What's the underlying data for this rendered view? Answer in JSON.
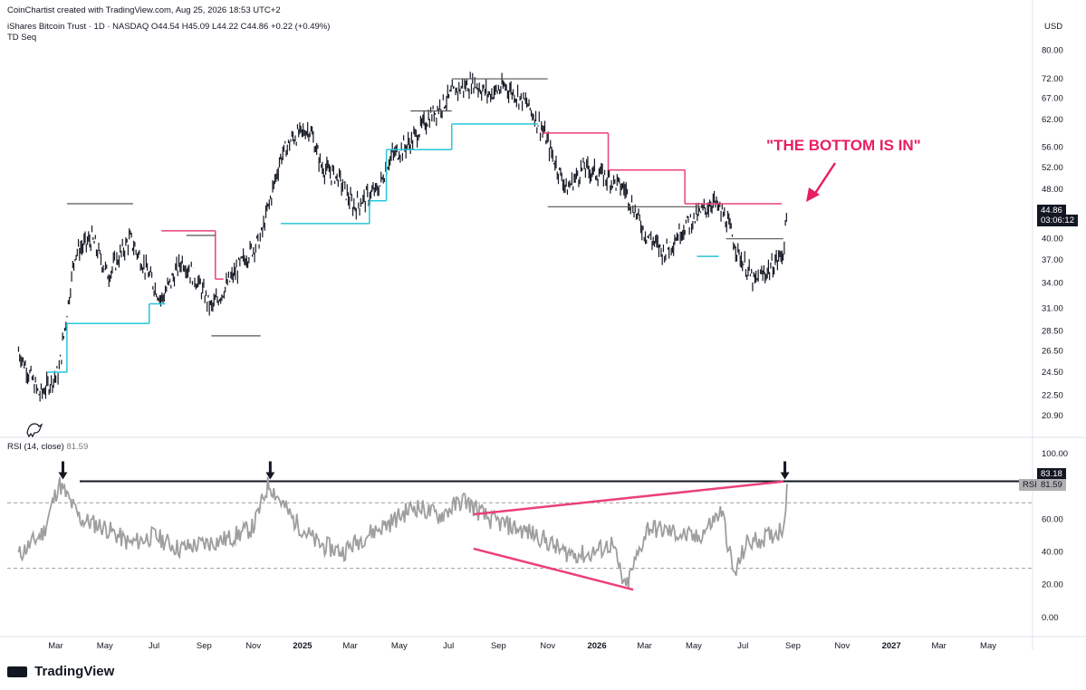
{
  "header": {
    "credit": "CoinChartist created with TradingView.com, Aug 25, 2026 18:53 UTC+2",
    "symbol_line": "iShares Bitcoin Trust · 1D · NASDAQ  O44.54  H45.09  L44.22  C44.86  +0.22 (+0.49%)",
    "indicator": "TD Seq",
    "currency": "USD"
  },
  "rsi_header": {
    "name": "RSI (14, close)",
    "value": "81.59"
  },
  "price_badges": {
    "last": "44.86",
    "countdown": "03:06:12"
  },
  "rsi_badges": {
    "level": "83.18",
    "tag": "RSI",
    "value": "81.59"
  },
  "annotation": {
    "text": "\"THE BOTTOM IS IN\""
  },
  "footer": {
    "brand": "TradingView"
  },
  "colors": {
    "annotation": "#e91e63",
    "support": "#26c6da",
    "resistance": "#ec407a",
    "rsi_line": "#9e9e9e",
    "candle": "#131722"
  },
  "chart_data": [
    {
      "type": "line",
      "title": "iShares Bitcoin Trust · 1D · NASDAQ",
      "x_ticks": [
        "Mar",
        "May",
        "Jul",
        "Sep",
        "Nov",
        "2025",
        "Mar",
        "May",
        "Jul",
        "Sep",
        "Nov",
        "2026",
        "Mar",
        "May",
        "Jul",
        "Sep",
        "Nov",
        "2027",
        "Mar",
        "May"
      ],
      "y_ticks": [
        "80.00",
        "72.00",
        "67.00",
        "62.00",
        "56.00",
        "52.00",
        "48.00",
        "44.86",
        "40.00",
        "37.00",
        "34.00",
        "31.00",
        "28.50",
        "26.50",
        "24.50",
        "22.50",
        "20.90"
      ],
      "scale": "log",
      "x": [
        "2024-01-15",
        "2024-02-10",
        "2024-03-05",
        "2024-03-25",
        "2024-04-15",
        "2024-05-05",
        "2024-06-01",
        "2024-06-20",
        "2024-07-10",
        "2024-08-05",
        "2024-08-25",
        "2024-09-10",
        "2024-10-01",
        "2024-10-20",
        "2024-11-10",
        "2024-12-05",
        "2024-12-20",
        "2025-01-10",
        "2025-01-25",
        "2025-02-15",
        "2025-03-05",
        "2025-04-05",
        "2025-04-20",
        "2025-05-15",
        "2025-06-05",
        "2025-06-20",
        "2025-07-10",
        "2025-08-01",
        "2025-08-20",
        "2025-09-10",
        "2025-10-05",
        "2025-10-25",
        "2025-11-10",
        "2025-11-25",
        "2025-12-15",
        "2026-01-15",
        "2026-02-05",
        "2026-03-01",
        "2026-03-25",
        "2026-04-20",
        "2026-05-10",
        "2026-05-25",
        "2026-06-10",
        "2026-06-25",
        "2026-07-15",
        "2026-08-05",
        "2026-08-20",
        "2026-08-25"
      ],
      "close": [
        26.5,
        22.5,
        24.5,
        38,
        40,
        35,
        40,
        36,
        32,
        37,
        34,
        31,
        34,
        37,
        40,
        54,
        58,
        60,
        52,
        50,
        45,
        48,
        54,
        57,
        62,
        65,
        69,
        71,
        68,
        70,
        66,
        60,
        53,
        48,
        52,
        50,
        48,
        41,
        38,
        42,
        44,
        46,
        43,
        38,
        34,
        36,
        38,
        44.86
      ],
      "levels": {
        "support_steps": [
          24.5,
          29.5,
          31.5,
          42.5,
          46,
          55.5,
          61,
          37.5
        ],
        "resistance_steps": [
          41.5,
          34.5,
          59,
          51,
          45.5
        ],
        "flat_levels": [
          45.5,
          40.5,
          28.0,
          72.0,
          64.0,
          45.0,
          40.0
        ]
      }
    },
    {
      "type": "line",
      "title": "RSI (14, close)",
      "y_ticks": [
        "100.00",
        "83.18",
        "81.59",
        "60.00",
        "40.00",
        "20.00",
        "0.00"
      ],
      "ylim": [
        -10,
        105
      ],
      "reference_lines": [
        70,
        30
      ],
      "key_level": 83.18,
      "x": [
        "2024-01-15",
        "2024-02-15",
        "2024-03-05",
        "2024-04-01",
        "2024-05-01",
        "2024-06-01",
        "2024-07-01",
        "2024-08-01",
        "2024-09-01",
        "2024-10-01",
        "2024-11-01",
        "2024-11-20",
        "2024-12-20",
        "2025-01-20",
        "2025-02-20",
        "2025-03-20",
        "2025-04-20",
        "2025-05-20",
        "2025-06-20",
        "2025-07-20",
        "2025-08-20",
        "2025-09-20",
        "2025-10-20",
        "2025-11-20",
        "2025-12-20",
        "2026-01-20",
        "2026-02-05",
        "2026-03-05",
        "2026-04-05",
        "2026-05-05",
        "2026-06-05",
        "2026-06-20",
        "2026-07-05",
        "2026-08-05",
        "2026-08-20",
        "2026-08-25"
      ],
      "values": [
        38,
        52,
        82,
        60,
        55,
        45,
        50,
        42,
        45,
        48,
        55,
        82,
        60,
        45,
        40,
        50,
        58,
        68,
        62,
        72,
        60,
        55,
        50,
        40,
        38,
        45,
        17,
        55,
        52,
        48,
        65,
        25,
        45,
        50,
        55,
        81.59
      ],
      "divergence_price_like": [
        [
          "2025-08-01",
          63
        ],
        [
          "2026-08-20",
          83
        ]
      ],
      "divergence_rsi": [
        [
          "2025-08-01",
          42
        ],
        [
          "2026-02-15",
          17
        ]
      ],
      "arrows_at": [
        "2024-03-10",
        "2024-11-22",
        "2026-08-22"
      ]
    }
  ]
}
